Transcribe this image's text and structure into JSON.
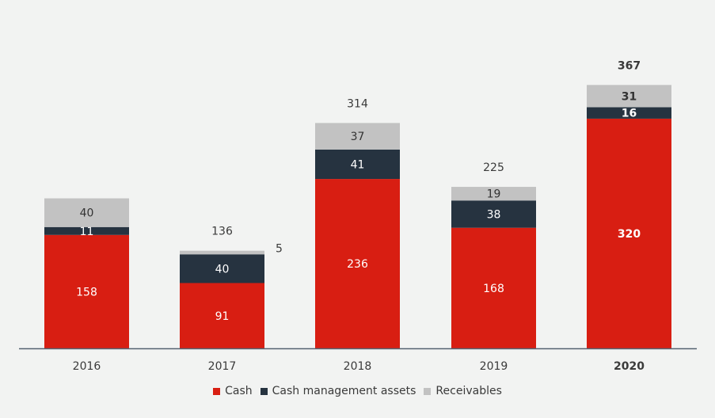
{
  "chart_data": {
    "type": "bar",
    "stacked": true,
    "categories": [
      "2016",
      "2017",
      "2018",
      "2019",
      "2020"
    ],
    "bold_categories": [
      "2020"
    ],
    "series": [
      {
        "name": "Cash",
        "color": "#d81e12",
        "values": [
          158,
          91,
          236,
          168,
          320
        ],
        "label_color": "#ffffff"
      },
      {
        "name": "Cash management assets",
        "color": "#263340",
        "values": [
          11,
          40,
          41,
          38,
          16
        ],
        "label_color": "#ffffff"
      },
      {
        "name": "Receivables",
        "color": "#c2c2c2",
        "values": [
          40,
          5,
          37,
          19,
          31
        ],
        "label_color": "#333333"
      }
    ],
    "totals": [
      "",
      "136",
      "314",
      "225",
      "367"
    ],
    "inside_labels": [
      [
        "158",
        "91",
        "236",
        "168",
        "320"
      ],
      [
        "11",
        "40",
        "41",
        "38",
        "16"
      ],
      [
        "40",
        "",
        "37",
        "19",
        "31"
      ]
    ],
    "outside_labels": [
      {
        "category": "2017",
        "text": "5"
      }
    ],
    "grid": false,
    "legend_position": "bottom"
  }
}
